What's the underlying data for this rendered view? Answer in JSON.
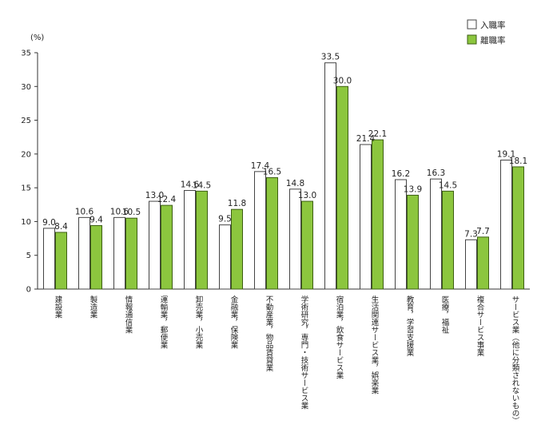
{
  "chart_data": {
    "type": "bar",
    "y_unit_label": "(%)",
    "ylim": [
      0,
      35
    ],
    "y_ticks": [
      0,
      5,
      10,
      15,
      20,
      25,
      30,
      35
    ],
    "grid": false,
    "legend_position": "top-right",
    "categories": [
      "建設業",
      "製造業",
      "情報通信業",
      "運輸業，郵便業",
      "卸売業，小売業",
      "金融業，保険業",
      "不動産業，物品賃貸業",
      "学術研究，専門・技術サービス業",
      "宿泊業，飲食サービス業",
      "生活関連サービス業，娯楽業",
      "教育，学習支援業",
      "医療，福祉",
      "複合サービス事業",
      "サービス業（他に分類されないもの）"
    ],
    "series": [
      {
        "name": "入職率",
        "color": "#ffffff",
        "values": [
          9.0,
          10.6,
          10.6,
          13.0,
          14.6,
          9.5,
          17.4,
          14.8,
          33.5,
          21.4,
          16.2,
          16.3,
          7.3,
          19.1
        ]
      },
      {
        "name": "離職率",
        "color": "#8cc63e",
        "values": [
          8.4,
          9.4,
          10.5,
          12.4,
          14.5,
          11.8,
          16.5,
          13.0,
          30.0,
          22.1,
          13.9,
          14.5,
          7.7,
          18.1
        ]
      }
    ],
    "value_labels": [
      [
        "9.0",
        "10.6",
        "10.6",
        "13.0",
        "14.6",
        "9.5",
        "17.4",
        "14.8",
        "33.5",
        "21.4",
        "16.2",
        "16.3",
        "7.3",
        "19.1"
      ],
      [
        "8.4",
        "9.4",
        "10.5",
        "12.4",
        "14.5",
        "11.8",
        "16.5",
        "13.0",
        "30.0",
        "22.1",
        "13.9",
        "14.5",
        "7.7",
        "18.1"
      ]
    ]
  }
}
